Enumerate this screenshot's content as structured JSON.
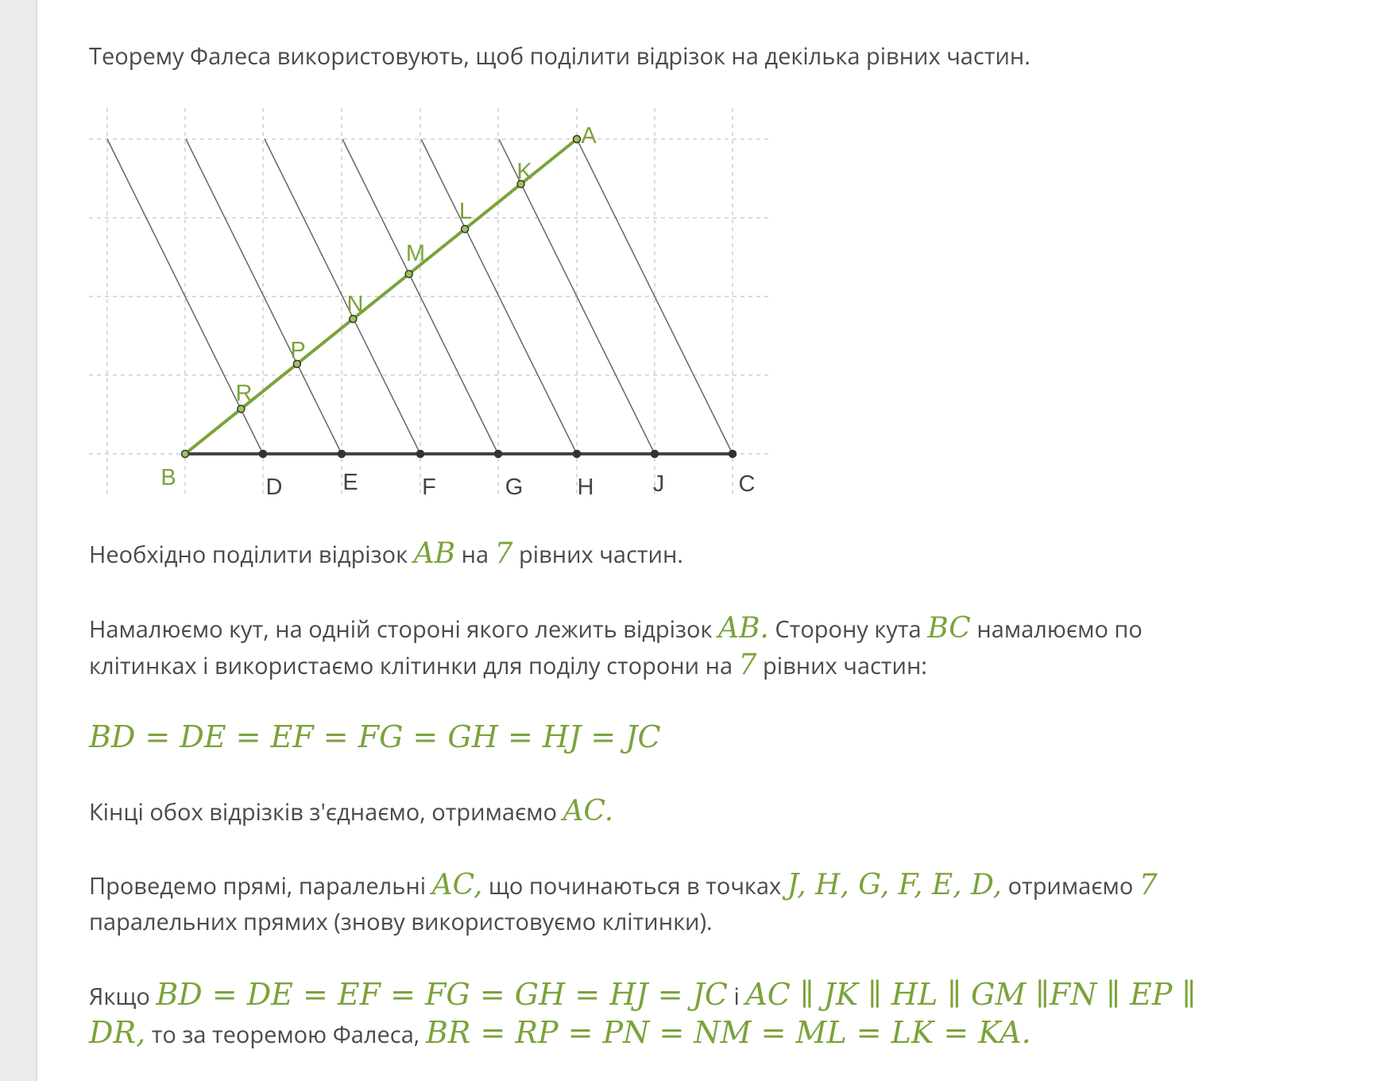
{
  "colors": {
    "accent": "#7aa33a",
    "text": "#4a4a4a",
    "sidebar": "#ebebeb"
  },
  "lines": [
    [
      {
        "t": "Теорему Фалеса використовують, щоб поділити відрізок на декілька рівних частин."
      }
    ],
    [
      {
        "t": "Необхідно поділити відрізок "
      },
      {
        "m": "AB"
      },
      {
        "t": " на "
      },
      {
        "m": "7"
      },
      {
        "t": " рівних частин."
      }
    ],
    [
      {
        "t": "Намалюємо кут, на одній стороні якого лежить відрізок "
      },
      {
        "m": "AB."
      },
      {
        "t": " Сторону кута "
      },
      {
        "m": "BC"
      },
      {
        "t": " намалюємо по"
      }
    ],
    [
      {
        "t": "клітинках і використаємо клітинки для поділу сторони на "
      },
      {
        "m": "7"
      },
      {
        "t": " рівних частин:"
      }
    ],
    [
      {
        "m": "BD = DE = EF = FG = GH = HJ = JC"
      }
    ],
    [
      {
        "t": "Кінці обох відрізків з'єднаємо, отримаємо "
      },
      {
        "m": "AC."
      }
    ],
    [
      {
        "t": "Проведемо прямі, паралельні "
      },
      {
        "m": "AC,"
      },
      {
        "t": " що починаються в точках "
      },
      {
        "m": "J, H, G, F, E, D,"
      },
      {
        "t": " отримаємо "
      },
      {
        "m": "7"
      }
    ],
    [
      {
        "t": "паралельних прямих (знову використовуємо клітинки)."
      }
    ],
    [
      {
        "t": "Якщо "
      },
      {
        "m": "BD = DE = EF = FG = GH = HJ = JC"
      },
      {
        "t": "  і  "
      },
      {
        "m": "AC ∥ JK ∥ HL ∥ GM ∥FN ∥ EP ∥"
      }
    ],
    [
      {
        "t": " "
      },
      {
        "m": "DR,"
      },
      {
        "t": " то за теоремою Фалеса, "
      },
      {
        "m": "BR = RP = PN = NM = ML = LK = KA."
      }
    ]
  ],
  "diagram": {
    "top_labels": [
      "A",
      "K",
      "L",
      "M",
      "N",
      "P",
      "R"
    ],
    "base_labels": [
      "B",
      "D",
      "E",
      "F",
      "G",
      "H",
      "J",
      "C"
    ]
  }
}
